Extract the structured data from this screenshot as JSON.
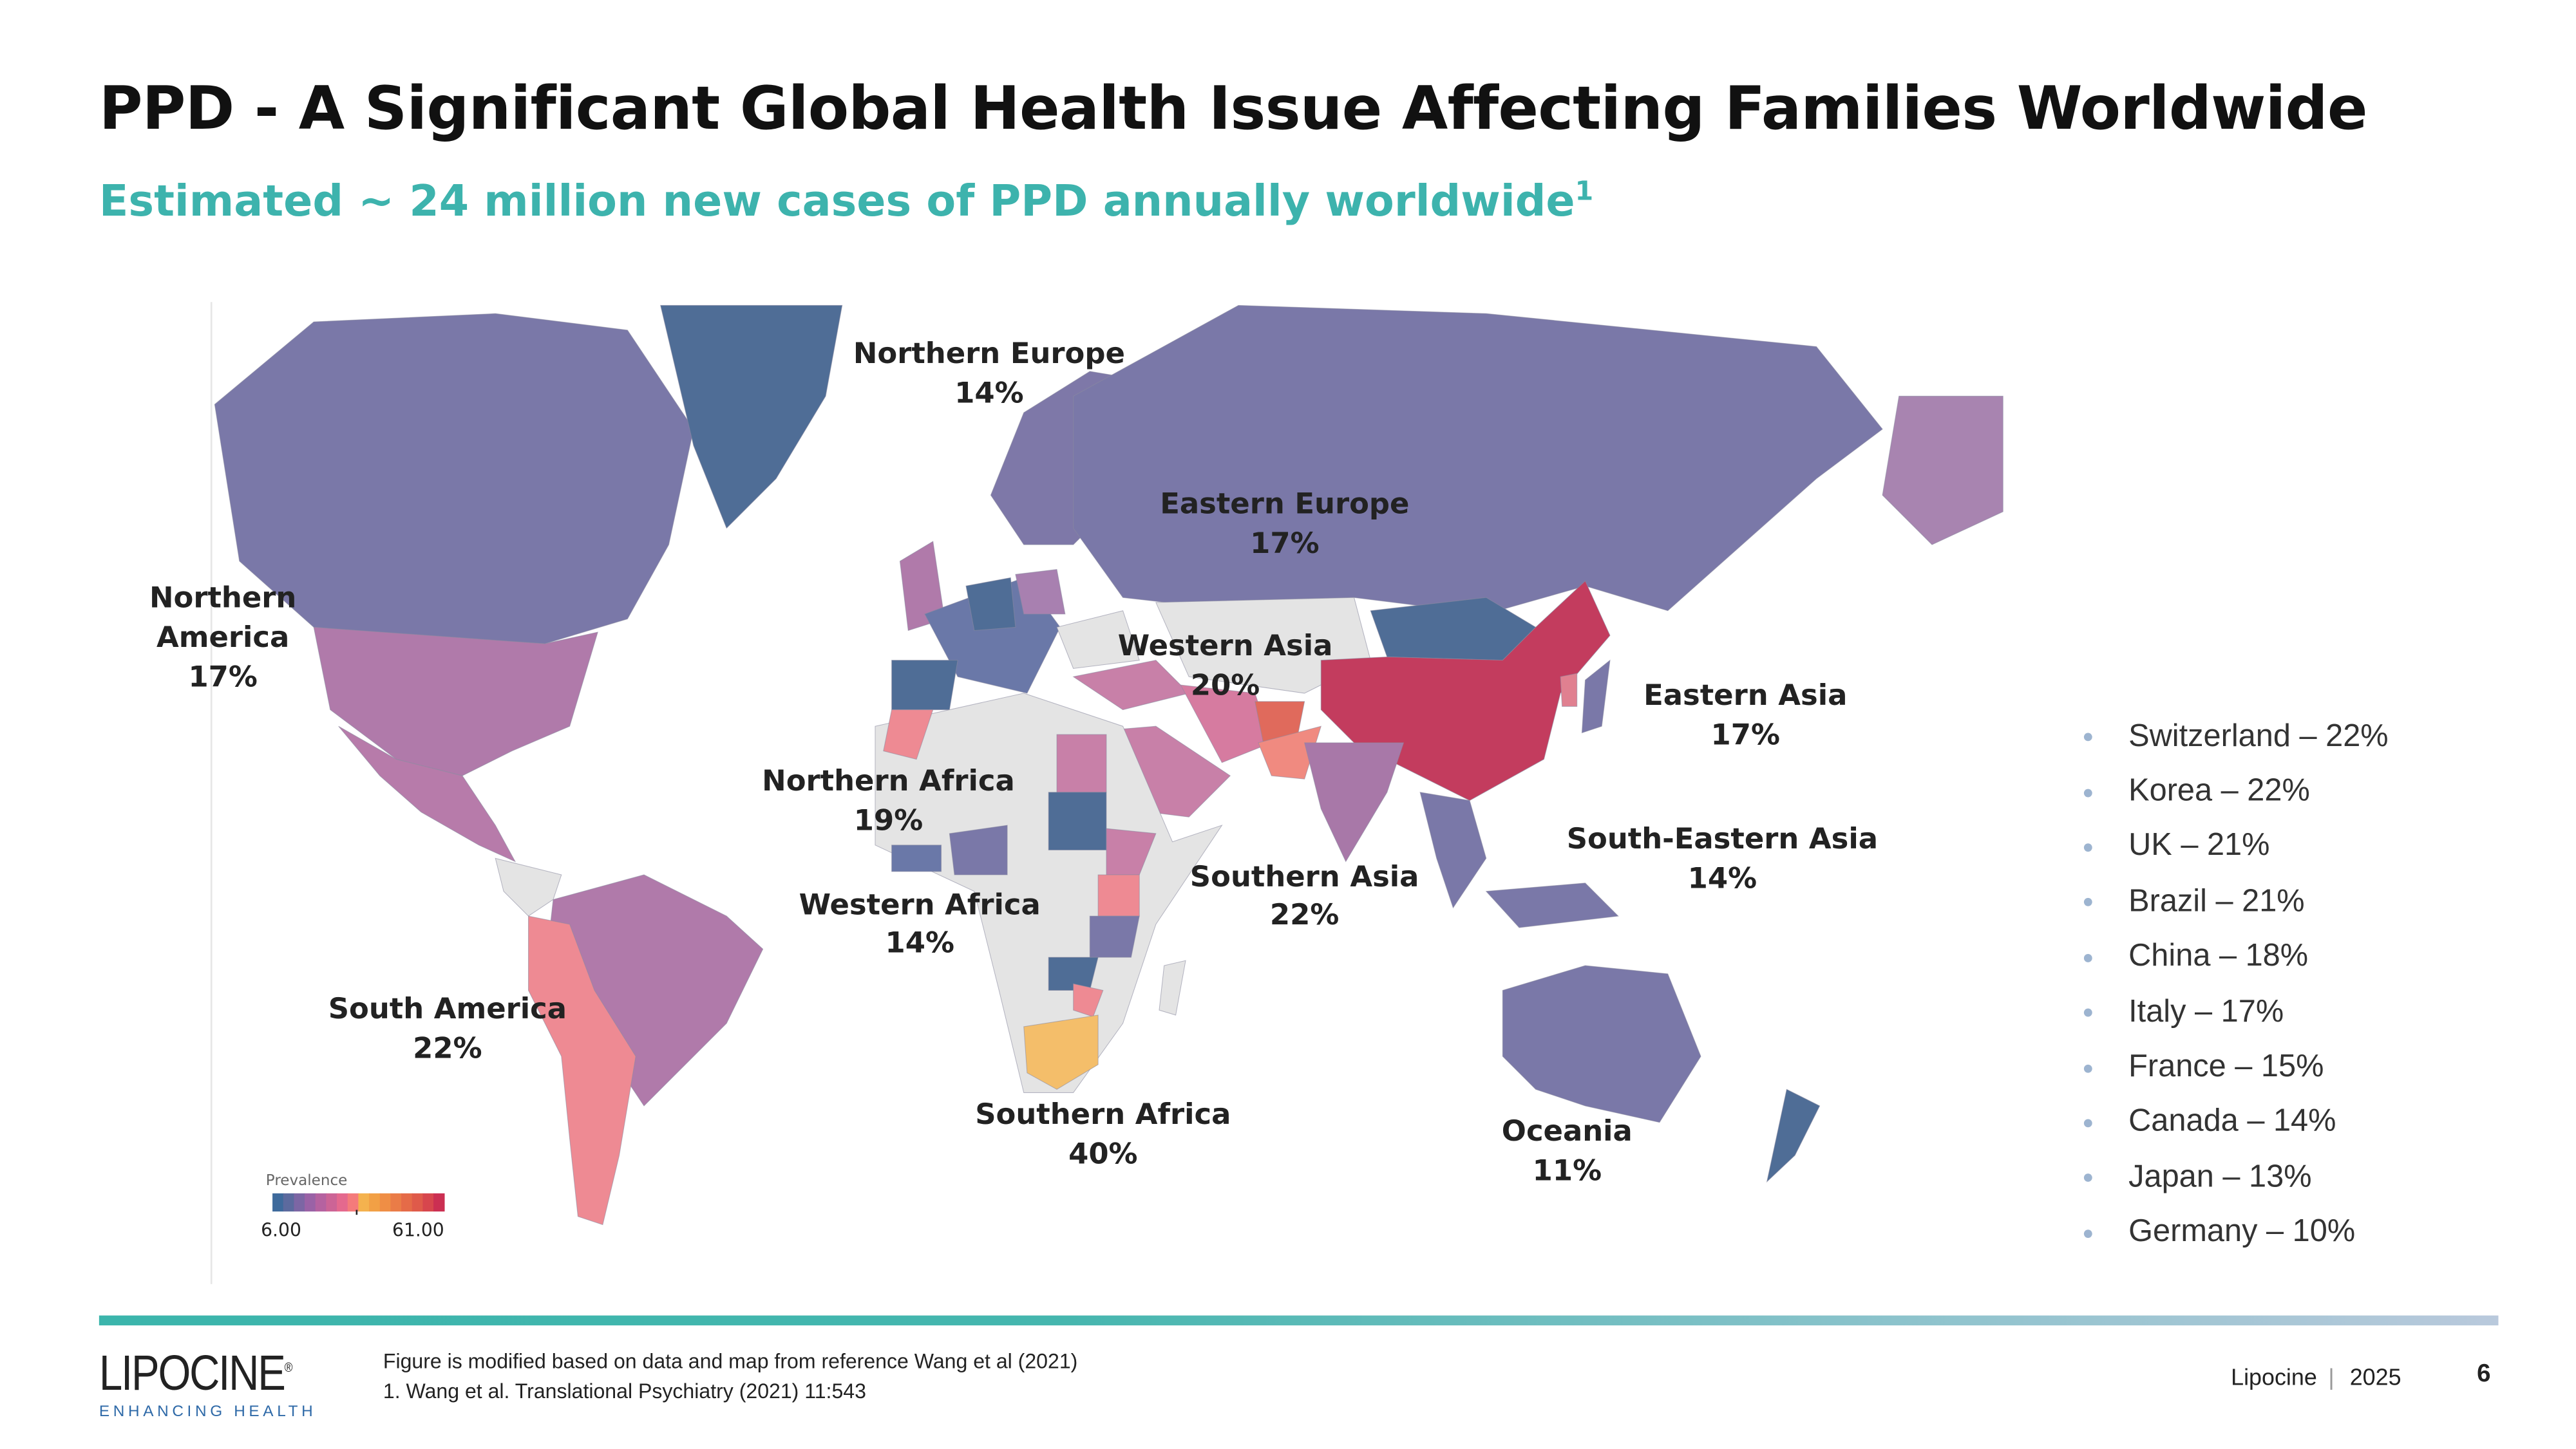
{
  "title": "PPD - A Significant Global Health Issue Affecting Families Worldwide",
  "subtitle": {
    "text": "Estimated ~ 24 million new cases of PPD annually worldwide",
    "footnote_ref": "1"
  },
  "map": {
    "regions": [
      {
        "name": "Northern Europe",
        "value": "14%"
      },
      {
        "name": "Eastern Europe",
        "value": "17%"
      },
      {
        "name_lines": [
          "Northern",
          "America"
        ],
        "value": "17%"
      },
      {
        "name": "Western Asia",
        "value": "20%"
      },
      {
        "name": "Eastern Asia",
        "value": "17%"
      },
      {
        "name": "Northern Africa",
        "value": "19%"
      },
      {
        "name": "South-Eastern Asia",
        "value": "14%"
      },
      {
        "name": "Southern Asia",
        "value": "22%"
      },
      {
        "name": "Western Africa",
        "value": "14%"
      },
      {
        "name": "South America",
        "value": "22%"
      },
      {
        "name": "Southern Africa",
        "value": "40%"
      },
      {
        "name": "Oceania",
        "value": "11%"
      }
    ],
    "legend": {
      "title": "Prevalence",
      "min": "6.00",
      "max": "61.00",
      "colors": [
        "#3E6A9C",
        "#5C6A9E",
        "#7C66A4",
        "#9A62A6",
        "#B562A0",
        "#CC6496",
        "#E4698E",
        "#F47B7B",
        "#F4B24E",
        "#F2A045",
        "#EF8E45",
        "#EA7C47",
        "#E56B48",
        "#DF5A4A",
        "#D7464D",
        "#CB2F52"
      ]
    },
    "colors": {
      "no_data": "#E4E4E4",
      "low": "#4F6D96",
      "mid_low": "#7A78A8",
      "mid": "#B07AAA",
      "pink": "#EE8A93",
      "high": "#C33C5E",
      "very_high": "#F4BE6A"
    }
  },
  "countries": [
    "Switzerland – 22%",
    "Korea – 22%",
    "UK – 21%",
    "Brazil – 21%",
    "China – 18%",
    "Italy – 17%",
    "France – 15%",
    "Canada – 14%",
    "Japan – 13%",
    "Germany – 10%"
  ],
  "footer": {
    "logo": {
      "word": "LIPOCINE",
      "mark": "®",
      "tagline": "ENHANCING HEALTH"
    },
    "note": "Figure is modified based on data and map from reference Wang et al (2021)",
    "reference": "1. Wang et al. Translational Psychiatry (2021) 11:543",
    "company": "Lipocine",
    "year": "2025",
    "page": "6"
  }
}
